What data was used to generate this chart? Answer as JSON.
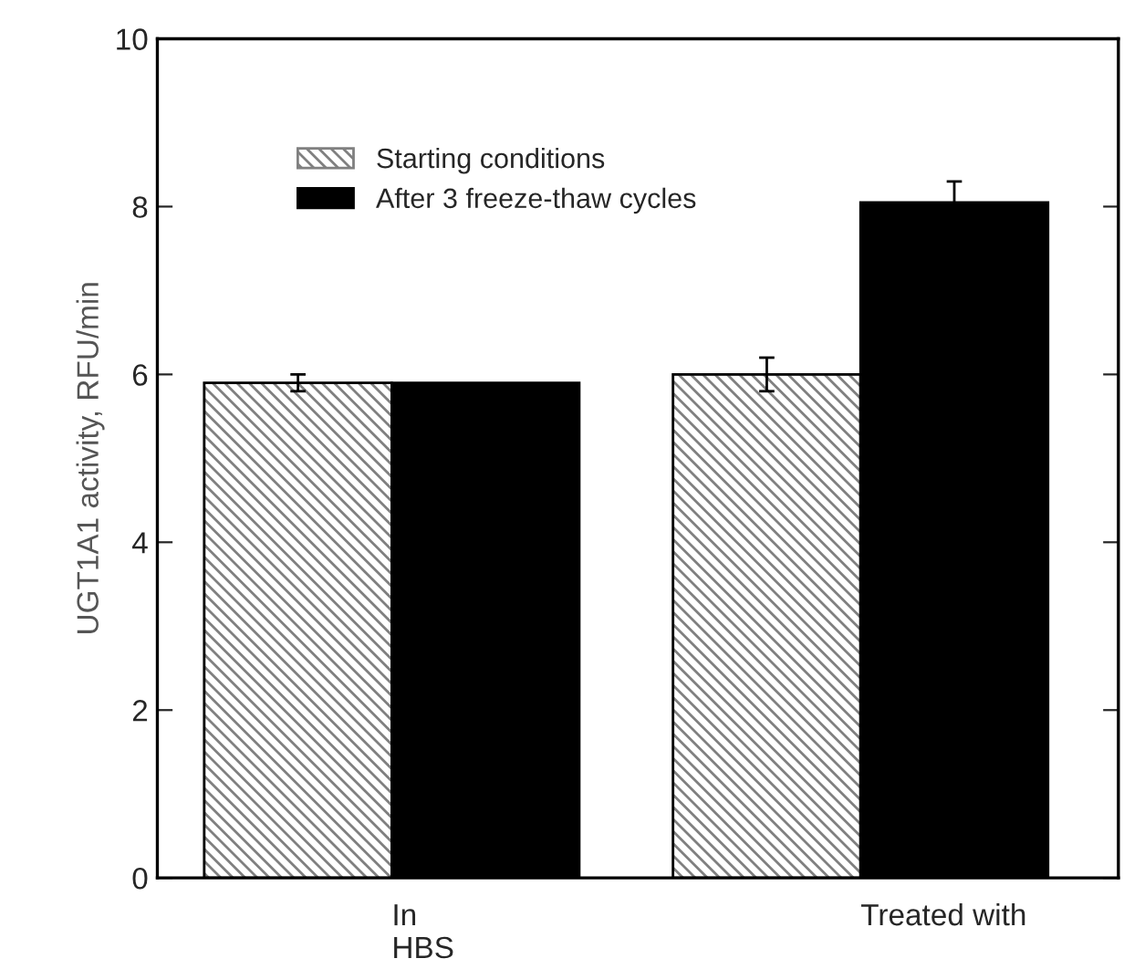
{
  "chart_data": {
    "type": "bar",
    "ylabel": "UGT1A1 activity, RFU/min",
    "categories": [
      "In\nHBS",
      "Treated with"
    ],
    "series": [
      {
        "name": "Starting conditions",
        "color": "#808080",
        "values": [
          5.9,
          6.0
        ],
        "errors": [
          0.1,
          0.2
        ]
      },
      {
        "name": "After 3 freeze-thaw cycles",
        "color": "#000000",
        "values": [
          5.9,
          8.05
        ],
        "errors": [
          null,
          0.25
        ]
      }
    ],
    "ylim": [
      0,
      10
    ],
    "yticks": [
      0,
      2,
      4,
      6,
      8,
      10
    ],
    "legend": "top left",
    "grid": false
  }
}
